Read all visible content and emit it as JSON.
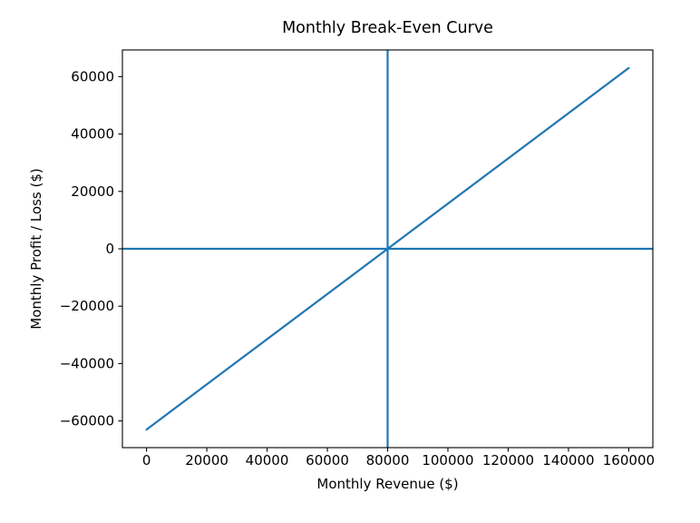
{
  "chart_data": {
    "type": "line",
    "title": "Monthly Break-Even Curve",
    "xlabel": "Monthly Revenue ($)",
    "ylabel": "Monthly Profit / Loss ($)",
    "xlim": [
      -8000,
      168000
    ],
    "ylim": [
      -69300,
      69300
    ],
    "grid": false,
    "legend": false,
    "x_tick_values": [
      0,
      20000,
      40000,
      60000,
      80000,
      100000,
      120000,
      140000,
      160000
    ],
    "x_tick_labels": [
      "0",
      "20000",
      "40000",
      "60000",
      "80000",
      "100000",
      "120000",
      "140000",
      "160000"
    ],
    "y_tick_values": [
      -60000,
      -40000,
      -20000,
      0,
      20000,
      40000,
      60000
    ],
    "y_tick_labels": [
      "−60000",
      "−40000",
      "−20000",
      "0",
      "20000",
      "40000",
      "60000"
    ],
    "axis_color": "#000000",
    "series": [
      {
        "name": "profit-loss-line",
        "kind": "segment",
        "color": "#1f77b4",
        "points": [
          [
            0,
            -63000
          ],
          [
            160000,
            63000
          ]
        ]
      },
      {
        "name": "zero-profit-hline",
        "kind": "hline",
        "color": "#1f77b4",
        "y": 0
      },
      {
        "name": "break-even-vline",
        "kind": "vline",
        "color": "#1f77b4",
        "x": 80000
      }
    ]
  }
}
